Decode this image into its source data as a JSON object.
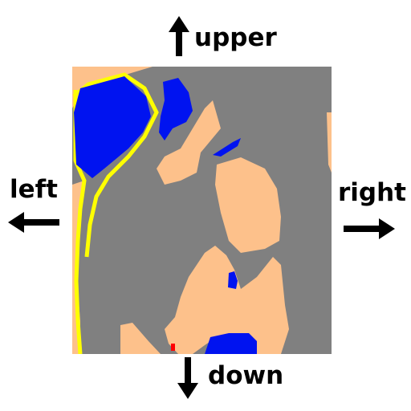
{
  "directions": {
    "upper": "upper",
    "left": "left",
    "right": "right",
    "down": "down"
  },
  "legend_colors": {
    "road": "#808080",
    "building": "#fdc18b",
    "water": "#0013f0",
    "route_line": "#ffff00",
    "marker": "#ff0000"
  }
}
